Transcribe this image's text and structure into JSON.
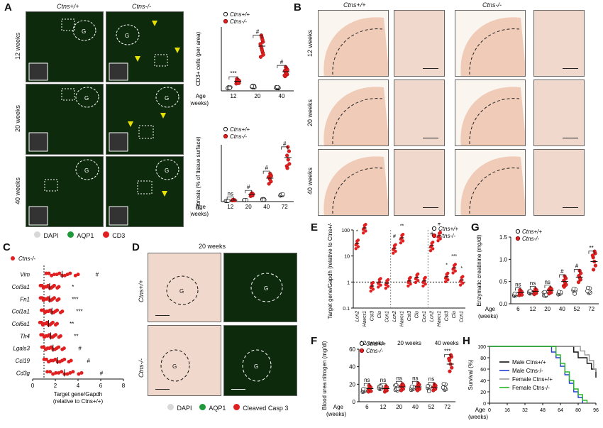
{
  "panels": {
    "A": {
      "letter": "A",
      "col_wt": "Ctns+/+",
      "col_ko": "Ctns-/-",
      "rows": [
        "12 weeks",
        "20 weeks",
        "40 weeks"
      ],
      "g_label": "G",
      "legend": [
        "DAPI",
        "AQP1",
        "CD3"
      ],
      "legend_colors": [
        "#d8d8d8",
        "#1e9a3a",
        "#e02020"
      ]
    },
    "B": {
      "letter": "B",
      "col_wt": "Ctns+/+",
      "col_ko": "Ctns-/-",
      "rows": [
        "12 weeks",
        "20 weeks",
        "40 weeks"
      ]
    },
    "C": {
      "letter": "C"
    },
    "D": {
      "letter": "D",
      "title": "20 weeks",
      "row_wt": "Ctns+/+",
      "row_ko": "Ctns-/-",
      "g_label": "G",
      "legend": [
        "DAPI",
        "AQP1",
        "Cleaved Casp 3"
      ],
      "legend_colors": [
        "#d8d8d8",
        "#1e9a3a",
        "#e02020"
      ]
    },
    "E": {
      "letter": "E"
    },
    "F": {
      "letter": "F"
    },
    "G": {
      "letter": "G"
    },
    "H": {
      "letter": "H"
    }
  },
  "colors": {
    "wt": "#ffffff",
    "ko": "#e02020",
    "stroke": "#111111",
    "male_wt": "#111111",
    "male_ko": "#1f3fd0",
    "female_wt": "#999999",
    "female_ko": "#26b526"
  },
  "chart_data": [
    {
      "id": "A-top",
      "type": "scatter",
      "ylabel": "CD3+ cells (per area)",
      "xlabel_line1": "Age",
      "xlabel_line2": "(weeks)",
      "categories": [
        "12",
        "20",
        "40"
      ],
      "legend": [
        "Ctns+/+",
        "Ctns-/-"
      ],
      "significance": [
        "***",
        "#",
        "#"
      ],
      "series": [
        {
          "name": "Ctns+/+",
          "values": [
            3,
            4,
            3
          ]
        },
        {
          "name": "Ctns-/-",
          "values": [
            9,
            42,
            18
          ]
        }
      ]
    },
    {
      "id": "A-bottom",
      "type": "scatter",
      "ylabel": "Fibrosis (% of tissue surface)",
      "xlabel_line1": "Age",
      "xlabel_line2": "(weeks)",
      "categories": [
        "12",
        "20",
        "40",
        "72"
      ],
      "legend": [
        "Ctns+/+",
        "Ctns-/-"
      ],
      "significance": [
        "ns",
        "#",
        "#",
        "#"
      ],
      "series": [
        {
          "name": "Ctns+/+",
          "values": [
            1,
            2,
            3,
            10
          ]
        },
        {
          "name": "Ctns-/-",
          "values": [
            2,
            10,
            33,
            62
          ]
        }
      ]
    },
    {
      "id": "C",
      "type": "scatter",
      "legend": [
        "Ctns-/-"
      ],
      "xlabel_line1": "Target gene/Gapdh",
      "xlabel_line2": "(relative to Ctns+/+)",
      "xlim": [
        0,
        8
      ],
      "xticks": [
        "0",
        "2",
        "4",
        "6",
        "8"
      ],
      "categories": [
        "Vim",
        "Col3a1",
        "Fn1",
        "Col1a1",
        "Col6a1",
        "Tlr4",
        "Lgals3",
        "Ccl19",
        "Cd3g"
      ],
      "significance": [
        "#",
        "*",
        "***",
        "***",
        "**",
        "**",
        "#",
        "#",
        "#"
      ],
      "means": [
        2.6,
        1.5,
        1.5,
        1.7,
        1.4,
        1.6,
        1.8,
        2.2,
        2.8
      ]
    },
    {
      "id": "E",
      "type": "scatter",
      "ylabel": "Target gene/Gapdh (relative to Ctns+/+)",
      "yticks": [
        "100",
        "10",
        "1",
        "0.1"
      ],
      "legend": [
        "Ctns+/+",
        "Ctns-/-"
      ],
      "groups": [
        "12 weeks",
        "20 weeks",
        "40 weeks"
      ],
      "categories": [
        "Lcn2",
        "Havcr1",
        "Cst3",
        "Clu",
        "Ccn1",
        "Lcn2",
        "Havcr1",
        "Cst3",
        "Clu",
        "Ccn1",
        "Lcn2",
        "Havcr1",
        "Cst3",
        "Clu",
        "Ccn1"
      ],
      "significance": [
        "*",
        "*",
        "",
        "",
        "",
        "#",
        "**",
        "",
        "",
        "",
        "#",
        "#",
        "*",
        "***",
        "*"
      ],
      "values": [
        30,
        120,
        0.7,
        1.0,
        0.9,
        20,
        50,
        1.1,
        1.5,
        1.1,
        25,
        60,
        1.6,
        3.5,
        1.2
      ]
    },
    {
      "id": "F",
      "type": "scatter",
      "ylabel": "Blood urea nitrogen (mg/dl)",
      "yticks": [
        "60",
        "40",
        "20",
        "0"
      ],
      "ylim": [
        0,
        60
      ],
      "xlabel_line1": "Age",
      "xlabel_line2": "(weeks)",
      "categories": [
        "6",
        "12",
        "20",
        "40",
        "52",
        "72"
      ],
      "legend": [
        "Ctns+/+",
        "Ctns-/-"
      ],
      "significance": [
        "ns",
        "ns",
        "ns",
        "ns",
        "ns",
        "***"
      ],
      "series": [
        {
          "name": "Ctns+/+",
          "values": [
            14,
            15,
            16,
            16,
            15,
            17
          ]
        },
        {
          "name": "Ctns-/-",
          "values": [
            15,
            15,
            17,
            17,
            16,
            43
          ]
        }
      ]
    },
    {
      "id": "G",
      "type": "scatter",
      "ylabel": "Enzymatic creatinine (mg/dl)",
      "yticks": [
        "1.5",
        "1.0",
        "0.5",
        "0.0"
      ],
      "ylim": [
        0,
        1.5
      ],
      "xlabel_line1": "Age",
      "xlabel_line2": "(weeks)",
      "categories": [
        "6",
        "12",
        "20",
        "40",
        "52",
        "72"
      ],
      "legend": [
        "Ctns+/+",
        "Ctns-/-"
      ],
      "significance": [
        "ns",
        "ns",
        "ns",
        "#",
        "#",
        "**"
      ],
      "series": [
        {
          "name": "Ctns+/+",
          "values": [
            0.22,
            0.24,
            0.22,
            0.25,
            0.28,
            0.3
          ]
        },
        {
          "name": "Ctns-/-",
          "values": [
            0.25,
            0.28,
            0.3,
            0.5,
            0.6,
            0.95
          ]
        }
      ]
    },
    {
      "id": "H",
      "type": "line",
      "ylabel": "Survival (%)",
      "yticks": [
        "100",
        "80",
        "60",
        "40",
        "20",
        "0"
      ],
      "ylim": [
        0,
        100
      ],
      "xlabel_line1": "Age",
      "xlabel_line2": "(weeks)",
      "xticks": [
        "0",
        "16",
        "32",
        "48",
        "64",
        "80",
        "96"
      ],
      "xlim": [
        0,
        96
      ],
      "series": [
        {
          "name": "Male Ctns+/+",
          "x": [
            0,
            72,
            76,
            80,
            84,
            88,
            92,
            96
          ],
          "y": [
            100,
            100,
            90,
            80,
            80,
            70,
            60,
            45
          ]
        },
        {
          "name": "Male Ctns-/-",
          "x": [
            0,
            52,
            56,
            60,
            64,
            68,
            72,
            76,
            80,
            84
          ],
          "y": [
            100,
            100,
            90,
            80,
            65,
            50,
            35,
            20,
            10,
            0
          ]
        },
        {
          "name": "Female Ctns+/+",
          "x": [
            0,
            78,
            82,
            86,
            90,
            94,
            96
          ],
          "y": [
            100,
            100,
            92,
            85,
            75,
            60,
            55
          ]
        },
        {
          "name": "Female Ctns-/-",
          "x": [
            0,
            56,
            60,
            64,
            68,
            72,
            76,
            80,
            84,
            88
          ],
          "y": [
            100,
            100,
            85,
            70,
            55,
            40,
            25,
            15,
            5,
            0
          ]
        }
      ],
      "legend": [
        "Male Ctns+/+",
        "Male Ctns-/-",
        "Female Ctns+/+",
        "Female Ctns-/-"
      ]
    }
  ]
}
